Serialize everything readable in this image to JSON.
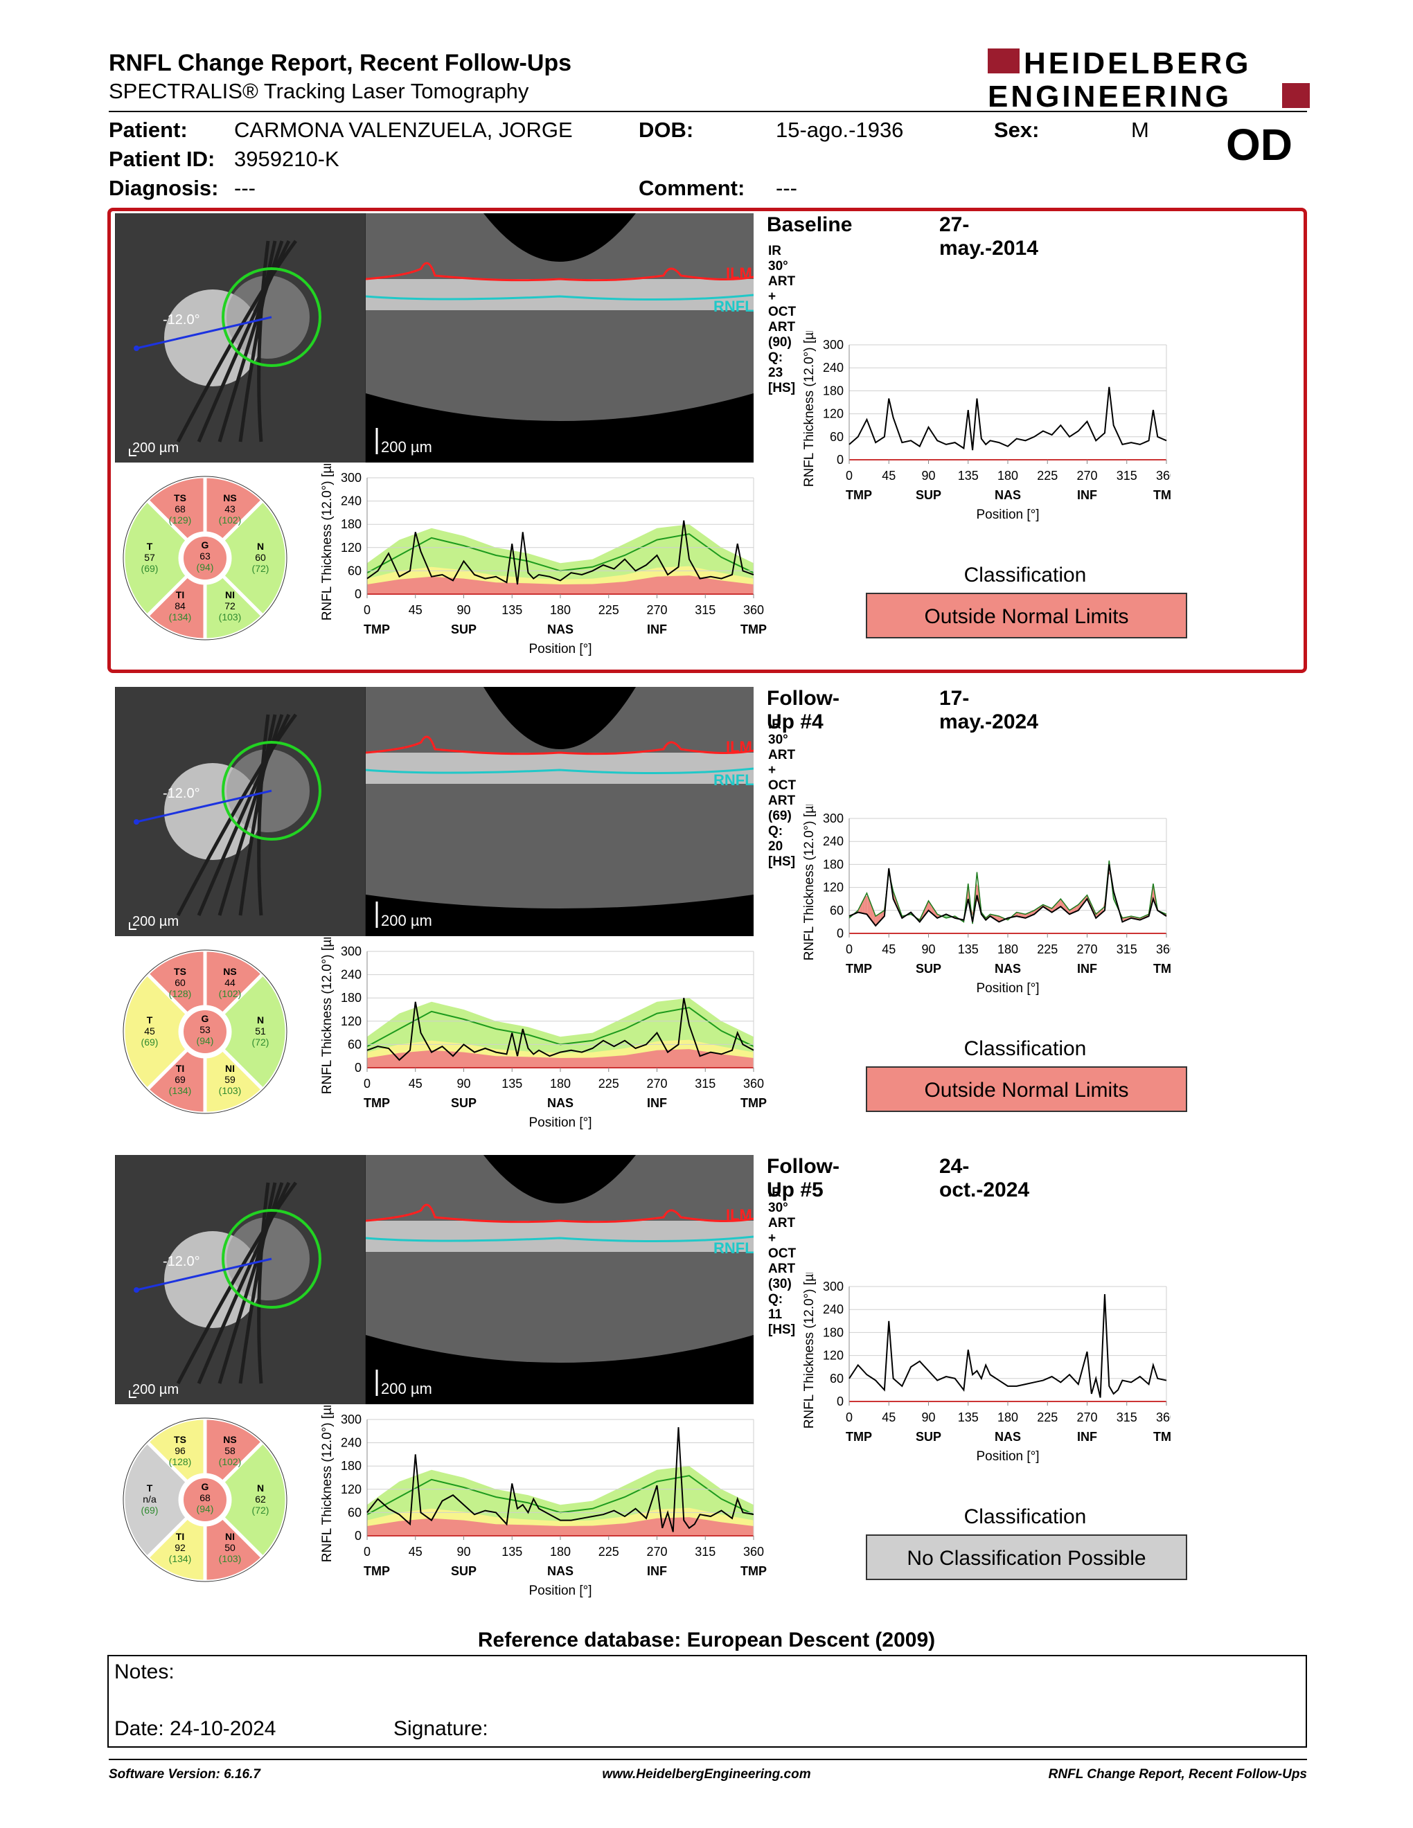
{
  "header": {
    "title": "RNFL Change Report, Recent Follow-Ups",
    "subtitle": "SPECTRALIS® Tracking Laser Tomography",
    "logo_line1": "HEIDELBERG",
    "logo_line2": "ENGINEERING"
  },
  "patient": {
    "patient_label": "Patient:",
    "patient_value": "CARMONA VALENZUELA, JORGE",
    "dob_label": "DOB:",
    "dob_value": "15-ago.-1936",
    "sex_label": "Sex:",
    "sex_value": "M",
    "id_label": "Patient ID:",
    "id_value": "3959210-K",
    "diagnosis_label": "Diagnosis:",
    "diagnosis_value": "---",
    "comment_label": "Comment:",
    "comment_value": "---",
    "eye": "OD"
  },
  "scale_label": "200 µm",
  "angle_label": "-12.0°",
  "ilm_label": "ILM",
  "rnfl_label": "RNFL",
  "classification_title": "Classification",
  "colors": {
    "outside": "#f08c84",
    "borderline": "#f7f48c",
    "within": "#c4f18c",
    "na": "#cfcfcf",
    "frame": "#c1121a"
  },
  "scans": [
    {
      "title": "Baseline",
      "date": "27-may.-2014",
      "info": "IR 30° ART + OCT ART (90) Q: 23 [HS]",
      "classification": "Outside Normal Limits",
      "class_status": "outside",
      "sectors": {
        "TS": {
          "value": "68",
          "normal": "(129)",
          "status": "outside"
        },
        "NS": {
          "value": "43",
          "normal": "(102)",
          "status": "outside"
        },
        "T": {
          "value": "57",
          "normal": "(69)",
          "status": "within"
        },
        "G": {
          "value": "63",
          "normal": "(94)",
          "status": "outside"
        },
        "N": {
          "value": "60",
          "normal": "(72)",
          "status": "within"
        },
        "TI": {
          "value": "84",
          "normal": "(134)",
          "status": "outside"
        },
        "NI": {
          "value": "72",
          "normal": "(103)",
          "status": "within"
        }
      }
    },
    {
      "title": "Follow-Up #4",
      "date": "17-may.-2024",
      "info": "IR 30° ART + OCT ART (69) Q: 20 [HS]",
      "classification": "Outside Normal Limits",
      "class_status": "outside",
      "sectors": {
        "TS": {
          "value": "60",
          "normal": "(128)",
          "status": "outside"
        },
        "NS": {
          "value": "44",
          "normal": "(102)",
          "status": "outside"
        },
        "T": {
          "value": "45",
          "normal": "(69)",
          "status": "borderline"
        },
        "G": {
          "value": "53",
          "normal": "(94)",
          "status": "outside"
        },
        "N": {
          "value": "51",
          "normal": "(72)",
          "status": "within"
        },
        "TI": {
          "value": "69",
          "normal": "(134)",
          "status": "outside"
        },
        "NI": {
          "value": "59",
          "normal": "(103)",
          "status": "borderline"
        }
      }
    },
    {
      "title": "Follow-Up #5",
      "date": "24-oct.-2024",
      "info": "IR 30° ART + OCT ART (30) Q: 11 [HS]",
      "classification": "No Classification Possible",
      "class_status": "na",
      "sectors": {
        "TS": {
          "value": "96",
          "normal": "(128)",
          "status": "borderline"
        },
        "NS": {
          "value": "58",
          "normal": "(102)",
          "status": "outside"
        },
        "T": {
          "value": "n/a",
          "normal": "(69)",
          "status": "na"
        },
        "G": {
          "value": "68",
          "normal": "(94)",
          "status": "outside"
        },
        "N": {
          "value": "62",
          "normal": "(72)",
          "status": "within"
        },
        "TI": {
          "value": "92",
          "normal": "(134)",
          "status": "borderline"
        },
        "NI": {
          "value": "50",
          "normal": "(103)",
          "status": "outside"
        }
      }
    }
  ],
  "chart_data": [
    {
      "type": "line",
      "ylabel": "RNFL Thickness (12.0°) [µm]",
      "xlabel": "Position [°]",
      "ylim": [
        0,
        300
      ],
      "yticks": [
        0,
        60,
        120,
        180,
        240,
        300
      ],
      "xlim": [
        0,
        360
      ],
      "xticks": [
        0,
        45,
        90,
        135,
        180,
        225,
        270,
        315,
        360
      ],
      "region_labels": [
        {
          "x": 0,
          "label": "TMP"
        },
        {
          "x": 90,
          "label": "SUP"
        },
        {
          "x": 180,
          "label": "NAS"
        },
        {
          "x": 270,
          "label": "INF"
        },
        {
          "x": 360,
          "label": "TMP"
        }
      ],
      "grid": true,
      "normative_bands": {
        "x": [
          0,
          30,
          60,
          90,
          120,
          150,
          180,
          210,
          240,
          270,
          300,
          330,
          360
        ],
        "outside_upper": [
          25,
          38,
          45,
          40,
          30,
          28,
          25,
          26,
          32,
          45,
          48,
          35,
          25
        ],
        "borderline_upper": [
          40,
          60,
          70,
          62,
          48,
          42,
          38,
          40,
          50,
          68,
          72,
          55,
          40
        ],
        "within_upper": [
          80,
          140,
          170,
          150,
          120,
          105,
          80,
          90,
          130,
          170,
          180,
          120,
          80
        ],
        "median": [
          55,
          100,
          145,
          125,
          100,
          85,
          60,
          70,
          100,
          140,
          155,
          95,
          55
        ]
      },
      "series": [
        {
          "name": "Baseline",
          "x": [
            0,
            10,
            20,
            30,
            40,
            45,
            50,
            60,
            70,
            80,
            90,
            100,
            110,
            120,
            130,
            135,
            140,
            145,
            150,
            155,
            160,
            170,
            180,
            190,
            200,
            210,
            220,
            230,
            240,
            250,
            260,
            270,
            280,
            290,
            295,
            300,
            310,
            320,
            330,
            340,
            345,
            350,
            360
          ],
          "y": [
            40,
            60,
            105,
            45,
            60,
            160,
            110,
            45,
            50,
            35,
            85,
            50,
            40,
            45,
            30,
            130,
            25,
            160,
            55,
            40,
            50,
            45,
            35,
            55,
            50,
            60,
            75,
            65,
            90,
            60,
            75,
            100,
            50,
            70,
            190,
            90,
            40,
            45,
            40,
            50,
            130,
            60,
            50
          ]
        },
        {
          "name": "Follow-Up #4",
          "x": [
            0,
            10,
            20,
            30,
            40,
            45,
            50,
            60,
            70,
            80,
            90,
            100,
            110,
            120,
            130,
            135,
            140,
            145,
            150,
            155,
            160,
            170,
            180,
            190,
            200,
            210,
            220,
            230,
            240,
            250,
            260,
            270,
            280,
            290,
            295,
            300,
            310,
            320,
            330,
            340,
            345,
            350,
            360
          ],
          "y": [
            45,
            55,
            50,
            20,
            45,
            170,
            90,
            40,
            55,
            30,
            60,
            40,
            50,
            40,
            35,
            90,
            30,
            100,
            50,
            35,
            45,
            30,
            40,
            45,
            40,
            50,
            70,
            55,
            70,
            50,
            60,
            90,
            40,
            60,
            180,
            110,
            30,
            40,
            35,
            45,
            90,
            60,
            45
          ]
        },
        {
          "name": "Follow-Up #5",
          "x": [
            0,
            10,
            20,
            30,
            40,
            45,
            50,
            60,
            70,
            80,
            90,
            100,
            110,
            120,
            130,
            135,
            140,
            145,
            150,
            155,
            160,
            170,
            180,
            190,
            200,
            210,
            220,
            230,
            240,
            250,
            260,
            270,
            275,
            280,
            285,
            290,
            295,
            300,
            305,
            310,
            320,
            330,
            340,
            345,
            350,
            360
          ],
          "y": [
            60,
            95,
            70,
            55,
            30,
            210,
            60,
            40,
            90,
            105,
            80,
            55,
            65,
            60,
            30,
            135,
            70,
            80,
            60,
            95,
            70,
            55,
            40,
            40,
            45,
            50,
            55,
            65,
            50,
            70,
            45,
            130,
            20,
            60,
            10,
            280,
            40,
            20,
            30,
            55,
            50,
            65,
            45,
            95,
            60,
            55
          ]
        }
      ]
    }
  ],
  "footer": {
    "ref_db": "Reference database: European Descent (2009)",
    "notes_label": "Notes:",
    "date_label": "Date: 24-10-2024",
    "signature_label": "Signature:",
    "software": "Software Version: 6.16.7",
    "website": "www.HeidelbergEngineering.com",
    "report_name": "RNFL Change Report, Recent Follow-Ups"
  }
}
